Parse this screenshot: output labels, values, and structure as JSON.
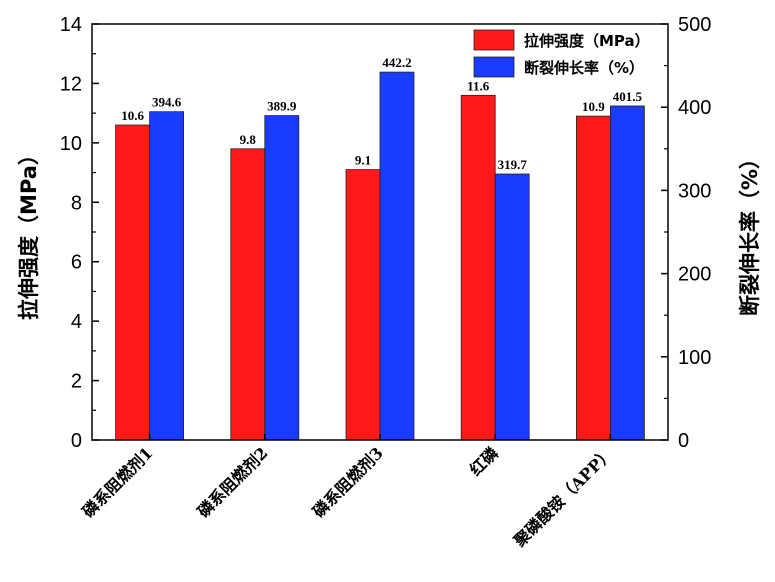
{
  "chart_data": {
    "type": "bar",
    "categories": [
      "磷系阻燃剂1",
      "磷系阻燃剂2",
      "磷系阻燃剂3",
      "红磷",
      "聚磷酸铵（APP）"
    ],
    "series": [
      {
        "name": "拉伸强度（MPa）",
        "axis": "left",
        "color": "#ff1a1a",
        "values": [
          10.6,
          9.8,
          9.1,
          11.6,
          10.9
        ],
        "labels": [
          "10.6",
          "9.8",
          "9.1",
          "11.6",
          "10.9"
        ]
      },
      {
        "name": "断裂伸长率（%）",
        "axis": "right",
        "color": "#1a3cff",
        "values": [
          394.6,
          389.9,
          442.2,
          319.7,
          401.5
        ],
        "labels": [
          "394.6",
          "389.9",
          "442.2",
          "319.7",
          "401.5"
        ]
      }
    ],
    "ylabel_left": "拉伸强度（MPa）",
    "ylabel_right": "断裂伸长率（%）",
    "ylim_left": [
      0,
      14
    ],
    "yticks_left": [
      "0",
      "2",
      "4",
      "6",
      "8",
      "10",
      "12",
      "14"
    ],
    "ylim_right": [
      0,
      500
    ],
    "yticks_right": [
      "0",
      "100",
      "200",
      "300",
      "400",
      "500"
    ],
    "legend_position": "top-right",
    "grid": false
  }
}
